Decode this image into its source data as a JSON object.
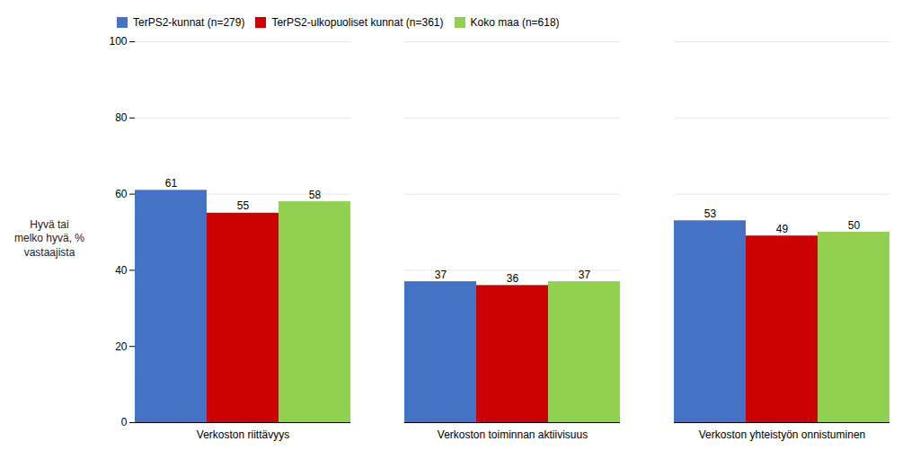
{
  "chart_data": {
    "type": "bar",
    "categories": [
      "Verkoston riittävyys",
      "Verkoston toiminnan aktiivisuus",
      "Verkoston yhteistyön onnistuminen"
    ],
    "series": [
      {
        "name": "TerPS2-kunnat (n=279)",
        "color": "#4472C4",
        "values": [
          61,
          37,
          53
        ]
      },
      {
        "name": "TerPS2-ulkopuoliset kunnat (n=361)",
        "color": "#CC0000",
        "values": [
          55,
          36,
          49
        ]
      },
      {
        "name": "Koko maa (n=618)",
        "color": "#92D050",
        "values": [
          58,
          37,
          50
        ]
      }
    ],
    "ylabel": "Hyvä tai\nmelko hyvä, %\nvastaajista",
    "ylim": [
      0,
      100
    ],
    "yticks": [
      0,
      20,
      40,
      60,
      80,
      100
    ],
    "grid": true,
    "legend": "top",
    "data_labels": true
  }
}
